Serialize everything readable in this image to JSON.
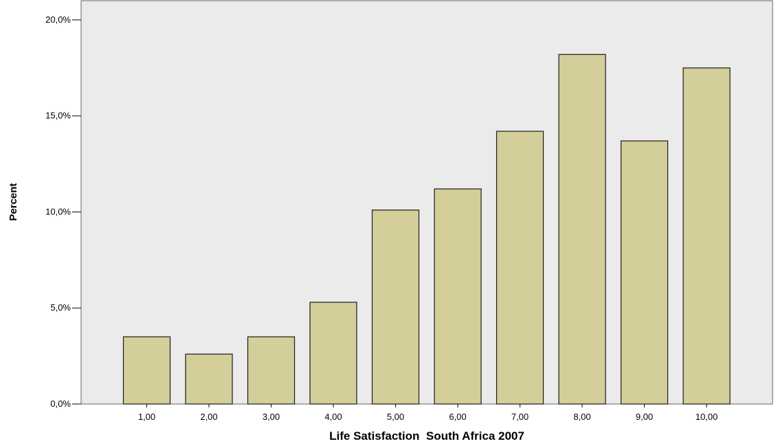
{
  "chart_data": {
    "type": "bar",
    "title": "",
    "xlabel": "Life Satisfaction  South Africa 2007",
    "ylabel": "Percent",
    "categories": [
      "1,00",
      "2,00",
      "3,00",
      "4,00",
      "5,00",
      "6,00",
      "7,00",
      "8,00",
      "9,00",
      "10,00"
    ],
    "values": [
      3.5,
      2.6,
      3.5,
      5.3,
      10.1,
      11.2,
      14.2,
      18.2,
      13.7,
      17.5
    ],
    "ylim": [
      0,
      21
    ],
    "yticks": [
      0,
      5,
      10,
      15,
      20
    ],
    "ytick_labels": [
      "0,0%",
      "5,0%",
      "10,0%",
      "15,0%",
      "20,0%"
    ],
    "grid": false,
    "legend": "none",
    "colors": {
      "plot_background": "#ebebeb",
      "bar_fill": "#d4ce9a",
      "bar_stroke": "#1a1a1a"
    }
  }
}
